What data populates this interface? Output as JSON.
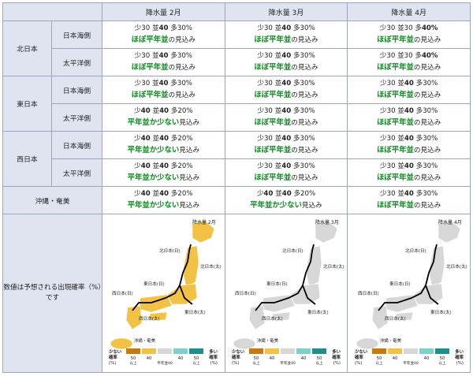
{
  "columns": [
    "降水量 2月",
    "降水量 3月",
    "降水量 4月"
  ],
  "labels": {
    "low": "少",
    "normal": "並",
    "high": "多",
    "suffix": "見込み"
  },
  "verdicts": {
    "normal": "ほぼ平年並",
    "normal_suffix": "の",
    "low": "平年並か少ない"
  },
  "rows": [
    {
      "region": "北日本",
      "sub": "日本海側",
      "cells": [
        {
          "low": "30",
          "normal": "40",
          "high": "30%",
          "verdict": "normal",
          "bold": "normal"
        },
        {
          "low": "30",
          "normal": "40",
          "high": "30%",
          "verdict": "normal",
          "bold": "normal"
        },
        {
          "low": "30",
          "normal": "30",
          "high": "40%",
          "verdict": "normal",
          "bold": "high"
        }
      ]
    },
    {
      "region": "北日本",
      "sub": "太平洋側",
      "cells": [
        {
          "low": "30",
          "normal": "40",
          "high": "30%",
          "verdict": "normal",
          "bold": "normal"
        },
        {
          "low": "30",
          "normal": "40",
          "high": "30%",
          "verdict": "normal",
          "bold": "normal"
        },
        {
          "low": "30",
          "normal": "30",
          "high": "40%",
          "verdict": "normal",
          "bold": "high"
        }
      ]
    },
    {
      "region": "東日本",
      "sub": "日本海側",
      "cells": [
        {
          "low": "30",
          "normal": "40",
          "high": "30%",
          "verdict": "normal",
          "bold": "normal"
        },
        {
          "low": "30",
          "normal": "40",
          "high": "30%",
          "verdict": "normal",
          "bold": "normal"
        },
        {
          "low": "30",
          "normal": "40",
          "high": "30%",
          "verdict": "normal",
          "bold": "normal"
        }
      ]
    },
    {
      "region": "東日本",
      "sub": "太平洋側",
      "cells": [
        {
          "low": "40",
          "normal": "40",
          "high": "20%",
          "verdict": "low",
          "bold": "lownormal"
        },
        {
          "low": "30",
          "normal": "40",
          "high": "30%",
          "verdict": "normal",
          "bold": "normal"
        },
        {
          "low": "30",
          "normal": "40",
          "high": "30%",
          "verdict": "normal",
          "bold": "normal"
        }
      ]
    },
    {
      "region": "西日本",
      "sub": "日本海側",
      "cells": [
        {
          "low": "40",
          "normal": "40",
          "high": "20%",
          "verdict": "low",
          "bold": "lownormal"
        },
        {
          "low": "30",
          "normal": "40",
          "high": "30%",
          "verdict": "normal",
          "bold": "normal"
        },
        {
          "low": "30",
          "normal": "40",
          "high": "30%",
          "verdict": "normal",
          "bold": "normal"
        }
      ]
    },
    {
      "region": "西日本",
      "sub": "太平洋側",
      "cells": [
        {
          "low": "40",
          "normal": "40",
          "high": "20%",
          "verdict": "low",
          "bold": "lownormal"
        },
        {
          "low": "30",
          "normal": "40",
          "high": "30%",
          "verdict": "normal",
          "bold": "normal"
        },
        {
          "low": "30",
          "normal": "40",
          "high": "30%",
          "verdict": "normal",
          "bold": "normal"
        }
      ]
    },
    {
      "region": "沖縄・奄美",
      "sub": "",
      "cells": [
        {
          "low": "40",
          "normal": "40",
          "high": "20%",
          "verdict": "low",
          "bold": "lownormal"
        },
        {
          "low": "40",
          "normal": "40",
          "high": "20%",
          "verdict": "low",
          "bold": "lownormal"
        },
        {
          "low": "30",
          "normal": "40",
          "high": "30%",
          "verdict": "normal",
          "bold": "normal"
        }
      ]
    }
  ],
  "note": "数値は予想される出現確率（%）です",
  "maps": [
    {
      "title": "降水量 2月",
      "tone": "low"
    },
    {
      "title": "降水量 3月",
      "tone": "normal"
    },
    {
      "title": "降水量 4月",
      "tone": "normal"
    }
  ],
  "map_labels": {
    "north": "北日本",
    "east_sea": "東日本(日)",
    "north_sea": "北日本(日)",
    "north_pac": "北日本(太)",
    "west_sea": "西日本(日)",
    "east_pac": "東日本(太)",
    "west_pac": "西日本(太)",
    "okinawa": "沖縄・奄美"
  },
  "legend": {
    "low_label": "少ない",
    "high_label": "多い",
    "prob": "確率",
    "pct": "(%)",
    "t50": "50",
    "t40": "40",
    "above": "以上",
    "normal40": "平年並40"
  },
  "colors": {
    "accent": "#0a8a1e",
    "header": "#dfe4f0",
    "low": "#f2c245",
    "high": "#1e8f8a",
    "gray": "#d7d7d7"
  }
}
